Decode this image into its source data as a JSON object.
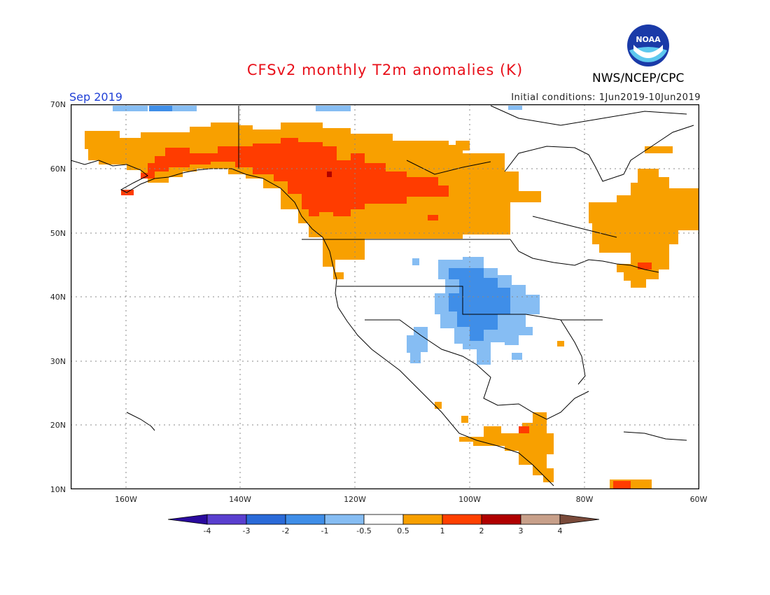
{
  "title": "CFSv2 monthly T2m anomalies (K)",
  "valid_month": "Sep 2019",
  "initial_conditions": "Initial conditions: 1Jun2019-10Jun2019",
  "agency": "NWS/NCEP/CPC",
  "logo_text": "NOAA",
  "lat_labels": [
    "70N",
    "60N",
    "50N",
    "40N",
    "30N",
    "20N",
    "10N"
  ],
  "lon_labels": [
    "160W",
    "140W",
    "120W",
    "100W",
    "80W",
    "60W"
  ],
  "colorbar": {
    "labels": [
      "-4",
      "-3",
      "-2",
      "-1",
      "-0.5",
      "0.5",
      "1",
      "2",
      "3",
      "4"
    ],
    "colors": [
      "#2a0a9e",
      "#5a3fcf",
      "#2a6ad8",
      "#3f8ee8",
      "#86bdf3",
      "#ffffff",
      "#f8a000",
      "#ff4000",
      "#b00000",
      "#c8a08a",
      "#7a4a3a"
    ]
  }
}
